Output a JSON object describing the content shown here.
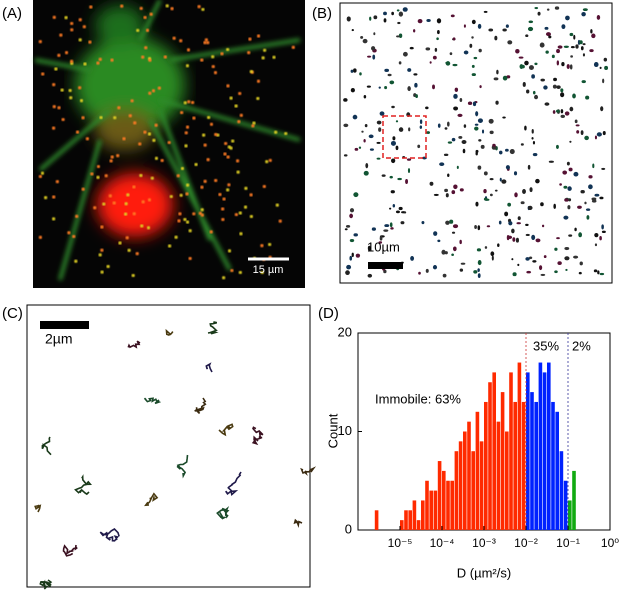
{
  "panels": [
    {
      "label": "(A)",
      "scale_bar": "15 µm"
    },
    {
      "label": "(B)",
      "scale_bar": "10µm"
    },
    {
      "label": "(C)",
      "scale_bar": "2µm"
    }
  ],
  "chart_data": {
    "type": "histogram",
    "panel_label": "(D)",
    "x_label": "D (µm²/s)",
    "y_label": "Count",
    "log_x": true,
    "xlim": [
      1e-06,
      1
    ],
    "ylim": [
      0,
      20
    ],
    "xticks": [
      {
        "value": 1e-05,
        "label": "10⁻⁵"
      },
      {
        "value": 0.0001,
        "label": "10⁻⁴"
      },
      {
        "value": 0.001,
        "label": "10⁻³"
      },
      {
        "value": 0.01,
        "label": "10⁻²"
      },
      {
        "value": 0.1,
        "label": "10⁻¹"
      },
      {
        "value": 1,
        "label": "10⁰"
      }
    ],
    "yticks": [
      0,
      10,
      20
    ],
    "bins": [
      2.512e-06,
      3.162e-06,
      3.981e-06,
      5.012e-06,
      6.31e-06,
      7.943e-06,
      1e-05,
      1.259e-05,
      1.585e-05,
      1.995e-05,
      2.512e-05,
      3.162e-05,
      3.981e-05,
      5.012e-05,
      6.31e-05,
      7.943e-05,
      0.0001,
      0.0001259,
      0.0001585,
      0.0001995,
      0.0002512,
      0.0003162,
      0.0003981,
      0.0005012,
      0.000631,
      0.0007943,
      0.001,
      0.001259,
      0.001585,
      0.001995,
      0.002512,
      0.003162,
      0.003981,
      0.005012,
      0.00631,
      0.007943,
      0.01,
      0.01259,
      0.01585,
      0.01995,
      0.02512,
      0.03162,
      0.03981,
      0.05012,
      0.0631,
      0.07943,
      0.1,
      0.1259,
      0.1585
    ],
    "counts": [
      2,
      0,
      0,
      0,
      0,
      0,
      1,
      2,
      2,
      3,
      1,
      3,
      5,
      4,
      4,
      7,
      6,
      5,
      5,
      8,
      9,
      10,
      11,
      8,
      12,
      9,
      13,
      15,
      16,
      11,
      14,
      10,
      16,
      13,
      17,
      13,
      16,
      14,
      13,
      17,
      16,
      17,
      13,
      12,
      8,
      5,
      3,
      6
    ],
    "colors": [
      "#ff2a00",
      "#0022ff",
      "#11aa11"
    ],
    "thresholds": [
      {
        "value": 0.01,
        "color": "#cc3333"
      },
      {
        "value": 0.1,
        "color": "#333399"
      }
    ],
    "annotations": [
      "Immobile: 63%",
      "35%",
      "2%"
    ]
  }
}
